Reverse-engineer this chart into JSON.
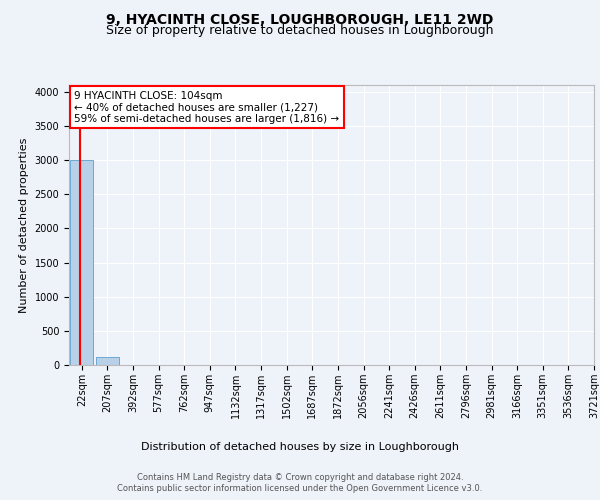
{
  "title": "9, HYACINTH CLOSE, LOUGHBOROUGH, LE11 2WD",
  "subtitle": "Size of property relative to detached houses in Loughborough",
  "xlabel": "Distribution of detached houses by size in Loughborough",
  "ylabel": "Number of detached properties",
  "footer_line1": "Contains HM Land Registry data © Crown copyright and database right 2024.",
  "footer_line2": "Contains public sector information licensed under the Open Government Licence v3.0.",
  "bin_labels": [
    "22sqm",
    "207sqm",
    "392sqm",
    "577sqm",
    "762sqm",
    "947sqm",
    "1132sqm",
    "1317sqm",
    "1502sqm",
    "1687sqm",
    "1872sqm",
    "2056sqm",
    "2241sqm",
    "2426sqm",
    "2611sqm",
    "2796sqm",
    "2981sqm",
    "3166sqm",
    "3351sqm",
    "3536sqm",
    "3721sqm"
  ],
  "bar_values": [
    3000,
    120,
    0,
    0,
    0,
    0,
    0,
    0,
    0,
    0,
    0,
    0,
    0,
    0,
    0,
    0,
    0,
    0,
    0,
    0
  ],
  "bar_color": "#b8d0e8",
  "bar_edge_color": "#6aaad4",
  "annotation_text_line1": "9 HYACINTH CLOSE: 104sqm",
  "annotation_text_line2": "← 40% of detached houses are smaller (1,227)",
  "annotation_text_line3": "59% of semi-detached houses are larger (1,816) →",
  "ylim": [
    0,
    4100
  ],
  "yticks": [
    0,
    500,
    1000,
    1500,
    2000,
    2500,
    3000,
    3500,
    4000
  ],
  "background_color": "#eef2f9",
  "grid_color": "#ffffff",
  "title_fontsize": 10,
  "subtitle_fontsize": 9,
  "ylabel_fontsize": 8,
  "xlabel_fontsize": 8,
  "tick_fontsize": 7,
  "annotation_fontsize": 7.5,
  "footer_fontsize": 6
}
